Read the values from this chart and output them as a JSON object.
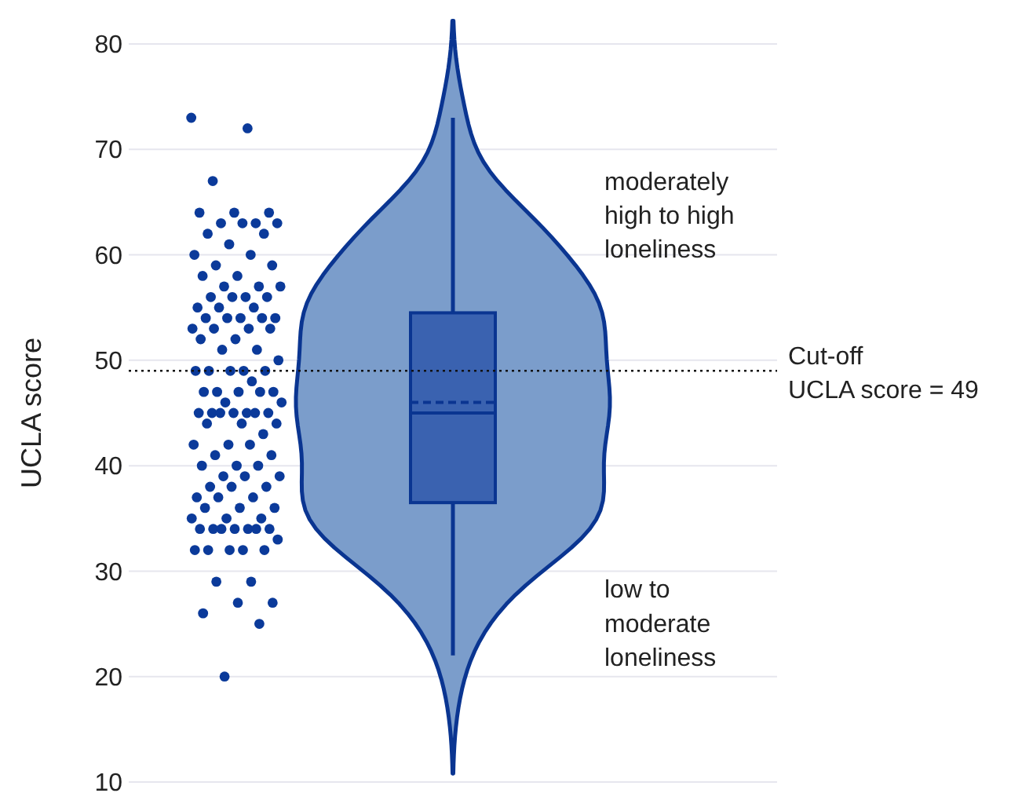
{
  "chart_data": {
    "type": "box",
    "ylabel": "UCLA score",
    "categories": [
      null,
      null,
      null
    ],
    "ylim": [
      10,
      80
    ],
    "yticks": [
      10,
      20,
      30,
      40,
      50,
      60,
      70,
      80
    ],
    "tick_labels": "y",
    "grid": "y",
    "color": "#3a62b0",
    "boxes": [
      null,
      {
        "low": 22,
        "q1": 36.5,
        "median": 45,
        "q3": 54.5,
        "high": 73,
        "mean": 46
      },
      null
    ],
    "series": [
      {
        "type": "scatter",
        "marker": "circle",
        "color": "#0b3a9a",
        "x": [
          null,
          null,
          null,
          null,
          null,
          null,
          null,
          null,
          null,
          null,
          null,
          null,
          null,
          null,
          null,
          null,
          null,
          null,
          null,
          null,
          null,
          null,
          null,
          null,
          null,
          null,
          null,
          null,
          null,
          null,
          null,
          null,
          null,
          null,
          null,
          null,
          null,
          null,
          null,
          null,
          null,
          null,
          null,
          null,
          null,
          null,
          null,
          null,
          null,
          null,
          null,
          null,
          null,
          null,
          null,
          null,
          null,
          null,
          null,
          null,
          null,
          null,
          null,
          null,
          null,
          null,
          null,
          null,
          null,
          null,
          null,
          null,
          null,
          null,
          null,
          null,
          null,
          null,
          null,
          null,
          null,
          null,
          null,
          null,
          null,
          null,
          null,
          null,
          null,
          null,
          null,
          null,
          null,
          null,
          null,
          null,
          null,
          null,
          null,
          null,
          null,
          null,
          null,
          null,
          null,
          null,
          null,
          null,
          null,
          null
        ],
        "values": [
          73,
          72,
          67,
          64,
          64,
          64,
          63,
          63,
          63,
          63,
          62,
          62,
          61,
          60,
          60,
          59,
          59,
          58,
          58,
          57,
          57,
          57,
          56,
          56,
          56,
          56,
          55,
          55,
          55,
          54,
          54,
          54,
          54,
          54,
          53,
          53,
          53,
          53,
          52,
          52,
          51,
          51,
          50,
          49,
          49,
          49,
          49,
          49,
          48,
          47,
          47,
          47,
          47,
          47,
          46,
          46,
          45,
          45,
          45,
          45,
          45,
          45,
          45,
          44,
          44,
          44,
          43,
          42,
          42,
          42,
          41,
          41,
          40,
          40,
          40,
          39,
          39,
          39,
          38,
          38,
          38,
          37,
          37,
          37,
          36,
          36,
          36,
          35,
          35,
          35,
          34,
          34,
          34,
          34,
          34,
          34,
          34,
          33,
          32,
          32,
          32,
          32,
          32,
          29,
          29,
          27,
          27,
          26,
          25,
          20
        ]
      }
    ],
    "ref_lines": [
      {
        "axis": "y",
        "value": 49,
        "label": "Cut-off\nUCLA score = 49",
        "line_style": "dotted",
        "color": "#111111"
      }
    ],
    "annotations": [
      "moderately\nhigh to high\nloneliness",
      "low to\nmoderate\nloneliness"
    ]
  }
}
